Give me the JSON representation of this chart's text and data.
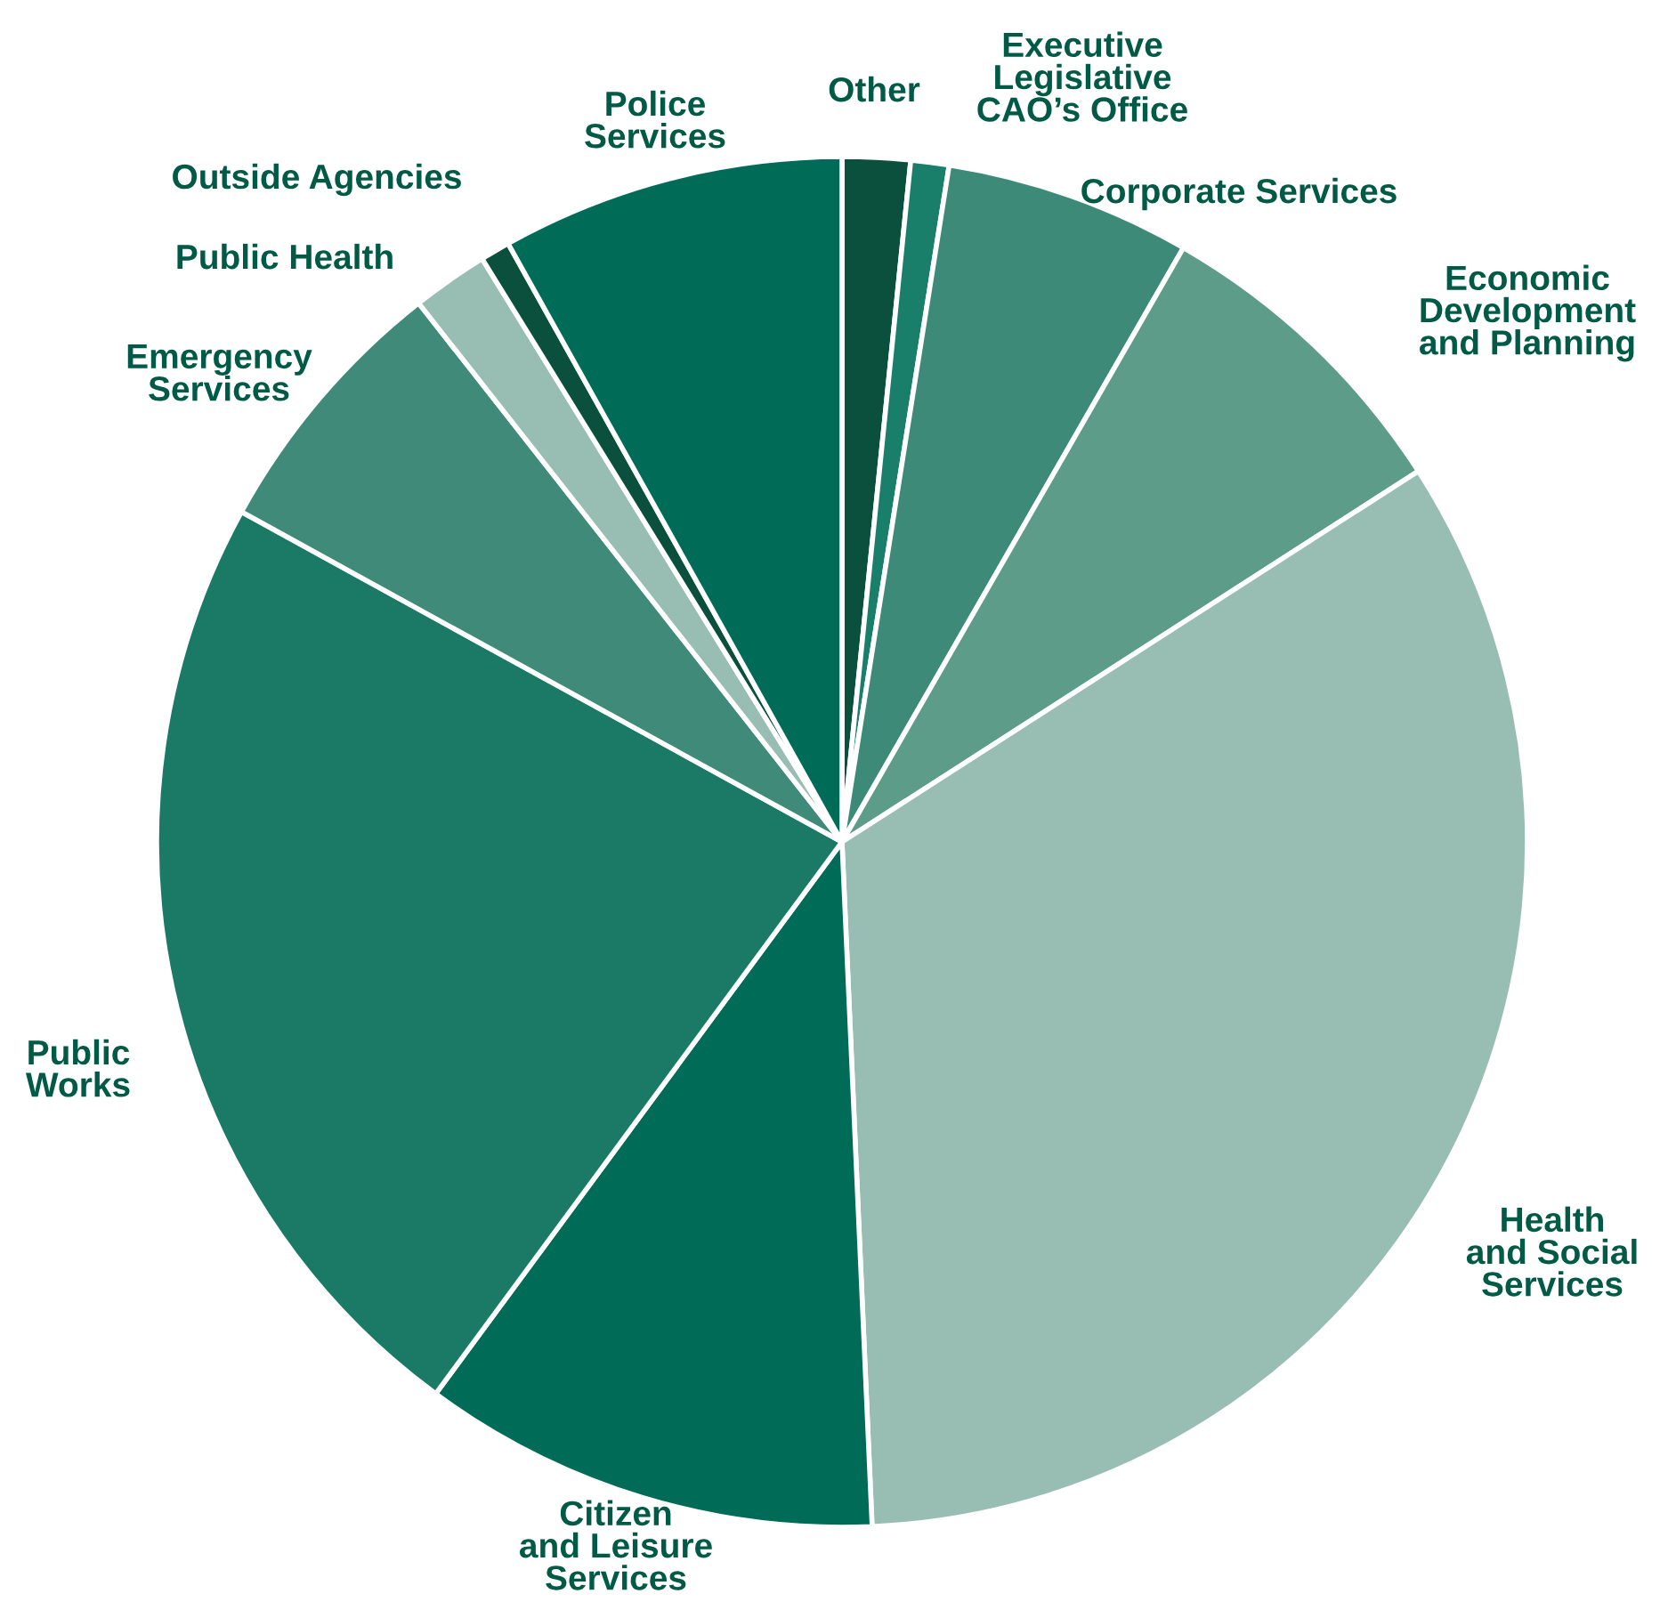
{
  "chart_data": {
    "type": "pie",
    "categories": [
      "Other",
      "Executive\nLegislative\nCAO’s Office",
      "Corporate Services",
      "Economic\nDevelopment\nand Planning",
      "Health\nand Social\nServices",
      "Citizen\nand Leisure\nServices",
      "Public\nWorks",
      "Emergency\nServices",
      "Public Health",
      "Outside Agencies",
      "Police\nServices"
    ],
    "values": [
      1.6,
      0.9,
      5.8,
      7.6,
      33.4,
      10.8,
      22.9,
      6.4,
      1.8,
      0.7,
      8.1
    ],
    "colors": [
      "#0b4f3d",
      "#1a7f6a",
      "#3d8a78",
      "#5e9c8a",
      "#98bdb2",
      "#006b56",
      "#1a7a66",
      "#3f8a78",
      "#98bdb2",
      "#0b4f3d",
      "#006b56"
    ]
  }
}
